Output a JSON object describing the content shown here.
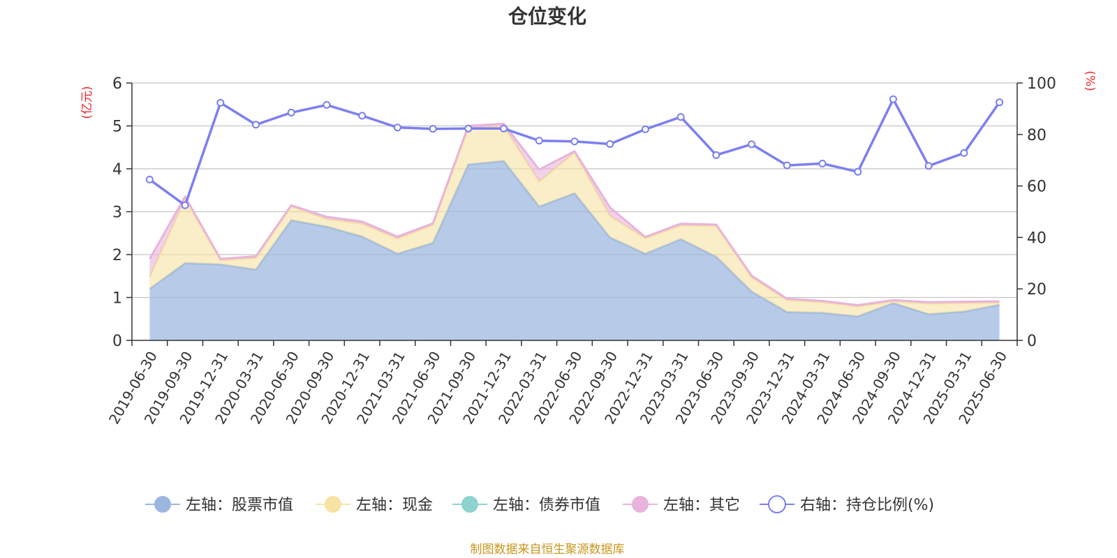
{
  "chart_data": {
    "type": "area",
    "title": "仓位变化",
    "left_unit": "(亿元)",
    "right_unit": "(%)",
    "ylim_left": [
      0,
      6
    ],
    "ylim_right": [
      0,
      100
    ],
    "left_ticks": [
      "0",
      "1",
      "2",
      "3",
      "4",
      "5",
      "6"
    ],
    "right_ticks": [
      "0",
      "20",
      "40",
      "60",
      "80",
      "100"
    ],
    "grid": true,
    "legend_position": "bottom",
    "source": "制图数据来自恒生聚源数据库",
    "categories": [
      "2019-06-30",
      "2019-09-30",
      "2019-12-31",
      "2020-03-31",
      "2020-06-30",
      "2020-09-30",
      "2020-12-31",
      "2021-03-31",
      "2021-06-30",
      "2021-09-30",
      "2021-12-31",
      "2022-03-31",
      "2022-06-30",
      "2022-09-30",
      "2022-12-31",
      "2023-03-31",
      "2023-06-30",
      "2023-09-30",
      "2023-12-31",
      "2024-03-31",
      "2024-06-30",
      "2024-09-30",
      "2024-12-31",
      "2025-03-31",
      "2025-06-30"
    ],
    "series": [
      {
        "name": "左轴：股票市值",
        "axis": "left",
        "stacked": true,
        "color": "#9bb7e0",
        "values": [
          1.2,
          1.8,
          1.77,
          1.65,
          2.8,
          2.65,
          2.42,
          2.02,
          2.27,
          4.1,
          4.18,
          3.12,
          3.43,
          2.4,
          2.02,
          2.36,
          1.95,
          1.14,
          0.66,
          0.64,
          0.56,
          0.87,
          0.61,
          0.67,
          0.83
        ]
      },
      {
        "name": "左轴：现金",
        "axis": "left",
        "stacked": true,
        "color": "#f7e3a3",
        "values": [
          0.28,
          1.5,
          0.1,
          0.27,
          0.32,
          0.18,
          0.3,
          0.35,
          0.42,
          0.85,
          0.82,
          0.58,
          0.95,
          0.5,
          0.36,
          0.32,
          0.72,
          0.33,
          0.28,
          0.25,
          0.23,
          0.04,
          0.25,
          0.2,
          0.05
        ]
      },
      {
        "name": "左轴：债券市值",
        "axis": "left",
        "stacked": true,
        "color": "#8fd3d0",
        "values": [
          0,
          0,
          0,
          0,
          0,
          0,
          0,
          0,
          0,
          0,
          0,
          0,
          0,
          0,
          0,
          0,
          0,
          0,
          0,
          0,
          0,
          0,
          0,
          0,
          0
        ]
      },
      {
        "name": "左轴：其它",
        "axis": "left",
        "stacked": true,
        "color": "#e8b4dc",
        "values": [
          0.42,
          0.05,
          0.03,
          0.04,
          0.03,
          0.05,
          0.05,
          0.05,
          0.04,
          0.05,
          0.05,
          0.28,
          0.03,
          0.2,
          0.03,
          0.04,
          0.03,
          0.04,
          0.03,
          0.03,
          0.03,
          0.03,
          0.03,
          0.03,
          0.03
        ]
      },
      {
        "name": "右轴：持仓比例(%)",
        "axis": "right",
        "type": "line",
        "color": "#7b7ff0",
        "values": [
          62.5,
          52.5,
          92.3,
          83.8,
          88.5,
          91.5,
          87.3,
          82.7,
          82.2,
          82.3,
          82.3,
          77.6,
          77.3,
          76.3,
          82.0,
          86.8,
          72.0,
          76.2,
          68.0,
          68.7,
          65.5,
          93.7,
          67.8,
          72.8,
          92.5
        ]
      }
    ]
  }
}
